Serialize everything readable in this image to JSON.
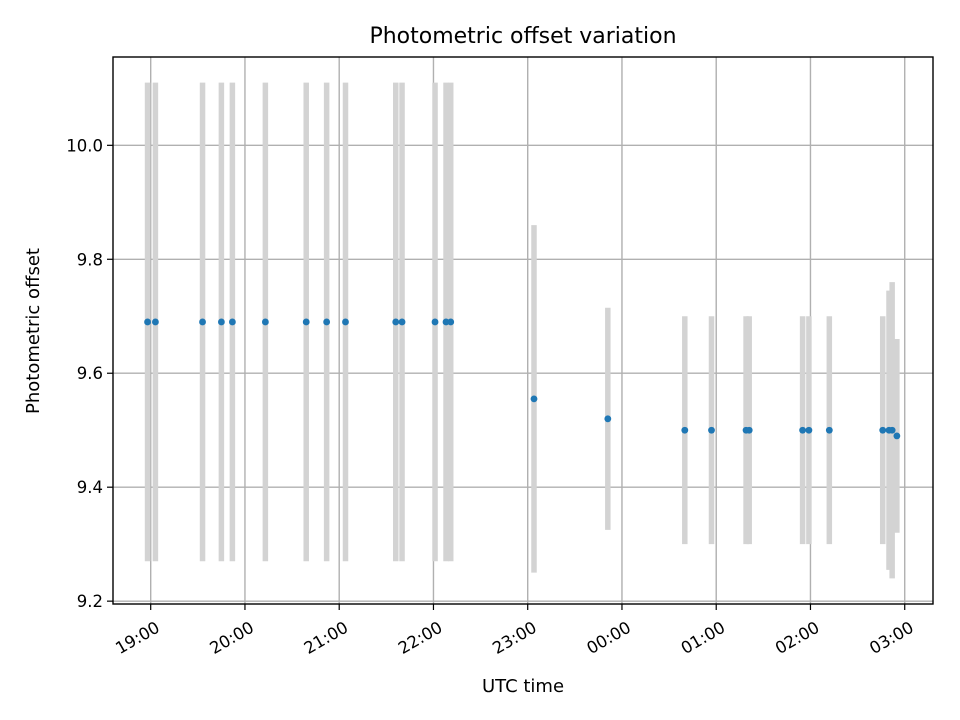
{
  "chart_data": {
    "type": "scatter",
    "title": "Photometric offset variation",
    "xlabel": "UTC time",
    "ylabel": "Photometric offset",
    "x_range_hours": [
      18.6,
      27.3
    ],
    "ylim": [
      9.195,
      10.155
    ],
    "x_ticks": [
      {
        "hour": 19,
        "label": "19:00"
      },
      {
        "hour": 20,
        "label": "20:00"
      },
      {
        "hour": 21,
        "label": "21:00"
      },
      {
        "hour": 22,
        "label": "22:00"
      },
      {
        "hour": 23,
        "label": "23:00"
      },
      {
        "hour": 24,
        "label": "00:00"
      },
      {
        "hour": 25,
        "label": "01:00"
      },
      {
        "hour": 26,
        "label": "02:00"
      },
      {
        "hour": 27,
        "label": "03:00"
      }
    ],
    "y_ticks": [
      {
        "value": 9.2,
        "label": "9.2"
      },
      {
        "value": 9.4,
        "label": "9.4"
      },
      {
        "value": 9.6,
        "label": "9.6"
      },
      {
        "value": 9.8,
        "label": "9.8"
      },
      {
        "value": 10.0,
        "label": "10.0"
      }
    ],
    "grid": true,
    "marker_color": "#1f77b4",
    "errorbar_color": "#d3d3d3",
    "points": [
      {
        "time": "18:58",
        "y": 9.69,
        "err": 0.42
      },
      {
        "time": "19:03",
        "y": 9.69,
        "err": 0.42
      },
      {
        "time": "19:33",
        "y": 9.69,
        "err": 0.42
      },
      {
        "time": "19:45",
        "y": 9.69,
        "err": 0.42
      },
      {
        "time": "19:52",
        "y": 9.69,
        "err": 0.42
      },
      {
        "time": "20:13",
        "y": 9.69,
        "err": 0.42
      },
      {
        "time": "20:39",
        "y": 9.69,
        "err": 0.42
      },
      {
        "time": "20:52",
        "y": 9.69,
        "err": 0.42
      },
      {
        "time": "21:04",
        "y": 9.69,
        "err": 0.42
      },
      {
        "time": "21:36",
        "y": 9.69,
        "err": 0.42
      },
      {
        "time": "21:40",
        "y": 9.69,
        "err": 0.42
      },
      {
        "time": "22:01",
        "y": 9.69,
        "err": 0.42
      },
      {
        "time": "22:08",
        "y": 9.69,
        "err": 0.42
      },
      {
        "time": "22:11",
        "y": 9.69,
        "err": 0.42
      },
      {
        "time": "23:04",
        "y": 9.555,
        "err": 0.305
      },
      {
        "time": "23:51",
        "y": 9.52,
        "err": 0.195
      },
      {
        "time": "00:40",
        "y": 9.5,
        "err": 0.2
      },
      {
        "time": "00:57",
        "y": 9.5,
        "err": 0.2
      },
      {
        "time": "01:19",
        "y": 9.5,
        "err": 0.2
      },
      {
        "time": "01:21",
        "y": 9.5,
        "err": 0.2
      },
      {
        "time": "01:55",
        "y": 9.5,
        "err": 0.2
      },
      {
        "time": "01:59",
        "y": 9.5,
        "err": 0.2
      },
      {
        "time": "02:12",
        "y": 9.5,
        "err": 0.2
      },
      {
        "time": "02:46",
        "y": 9.5,
        "err": 0.2
      },
      {
        "time": "02:50",
        "y": 9.5,
        "err": 0.245
      },
      {
        "time": "02:52",
        "y": 9.5,
        "err": 0.26
      },
      {
        "time": "02:55",
        "y": 9.49,
        "err": 0.17
      }
    ]
  }
}
